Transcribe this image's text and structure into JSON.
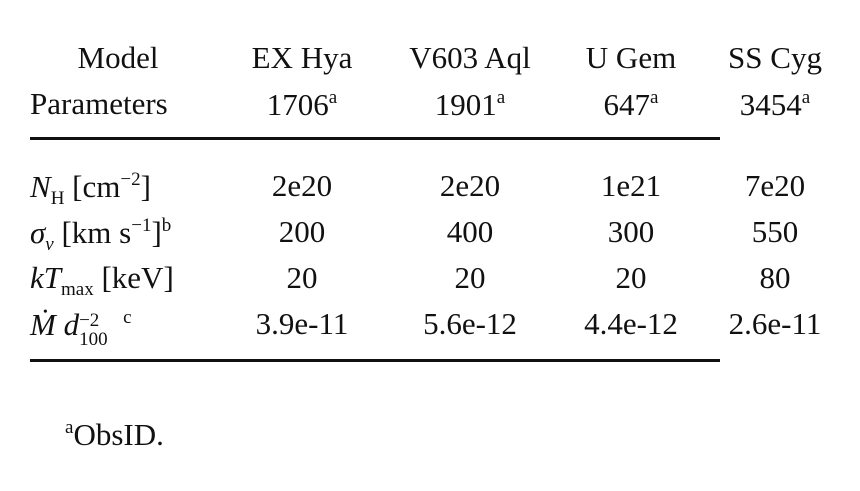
{
  "table": {
    "header": [
      [
        "Model",
        "Parameters"
      ],
      [
        "EX Hya",
        "1706",
        "a"
      ],
      [
        "V603 Aql",
        "1901",
        "a"
      ],
      [
        "U Gem",
        "647",
        "a"
      ],
      [
        "SS Cyg",
        "3454",
        "a"
      ]
    ],
    "rows": [
      {
        "label": [
          "N",
          "H",
          "[cm",
          "−2",
          "]"
        ],
        "cells": [
          "2e20",
          "2e20",
          "1e21",
          "7e20"
        ]
      },
      {
        "label": [
          "σ",
          "v",
          "[km s",
          "−1",
          "]",
          "b"
        ],
        "cells": [
          "200",
          "400",
          "300",
          "550"
        ]
      },
      {
        "label": [
          "kT",
          "max",
          "[keV]"
        ],
        "cells": [
          "20",
          "20",
          "20",
          "80"
        ]
      },
      {
        "label": [
          "Ṁ d",
          "100",
          "−2",
          "c"
        ],
        "cells": [
          "3.9e-11",
          "5.6e-12",
          "4.4e-12",
          "2.6e-11"
        ]
      }
    ]
  },
  "footnotes": [
    [
      "a",
      "ObsID."
    ]
  ]
}
